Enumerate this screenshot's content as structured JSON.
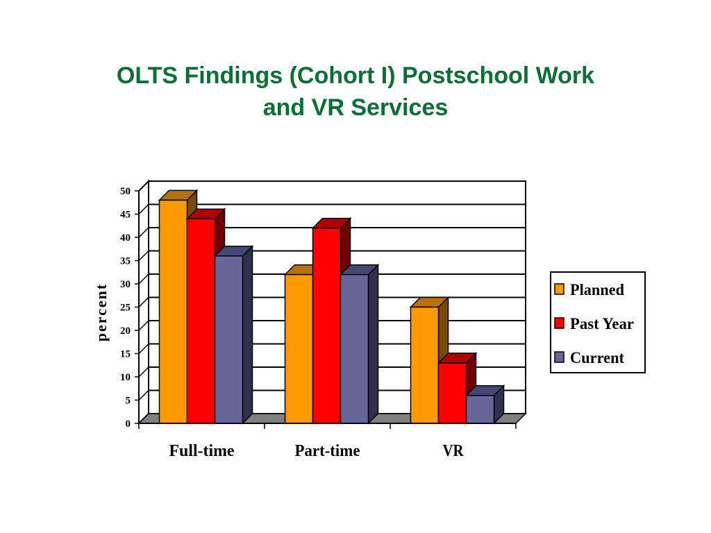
{
  "slide": {
    "title_line1": "OLTS Findings (Cohort I) Postschool Work",
    "title_line2": "and VR Services"
  },
  "chart_data": {
    "type": "bar",
    "three_d": true,
    "categories": [
      "Full-time",
      "Part-time",
      "VR"
    ],
    "series": [
      {
        "name": "Planned",
        "values": [
          48,
          32,
          25
        ],
        "color": "#ff9900",
        "top_color": "#b8700d",
        "side_color": "#7a4a00"
      },
      {
        "name": "Past Year",
        "values": [
          44,
          42,
          13
        ],
        "color": "#ff0000",
        "top_color": "#b00000",
        "side_color": "#6e0000"
      },
      {
        "name": "Current",
        "values": [
          36,
          32,
          6
        ],
        "color": "#666699",
        "top_color": "#474775",
        "side_color": "#30304d"
      }
    ],
    "ylabel": "percent",
    "xlabel": "",
    "ylim": [
      0,
      50
    ],
    "yticks": [
      0,
      5,
      10,
      15,
      20,
      25,
      30,
      35,
      40,
      45,
      50
    ],
    "grid": true,
    "legend_position": "right"
  }
}
